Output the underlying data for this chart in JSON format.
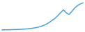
{
  "line_color": "#4aa3df",
  "background_color": "#ffffff",
  "linewidth": 1.1,
  "y_values": [
    0.2,
    0.3,
    0.35,
    0.4,
    0.5,
    0.55,
    0.65,
    0.75,
    0.9,
    1.1,
    1.4,
    1.7,
    2.1,
    2.6,
    3.3,
    4.2,
    5.3,
    6.8,
    8.5,
    10.2,
    12.5,
    15.0,
    17.5,
    15.0,
    13.5,
    16.0,
    19.0,
    21.0,
    22.5,
    23.5
  ]
}
